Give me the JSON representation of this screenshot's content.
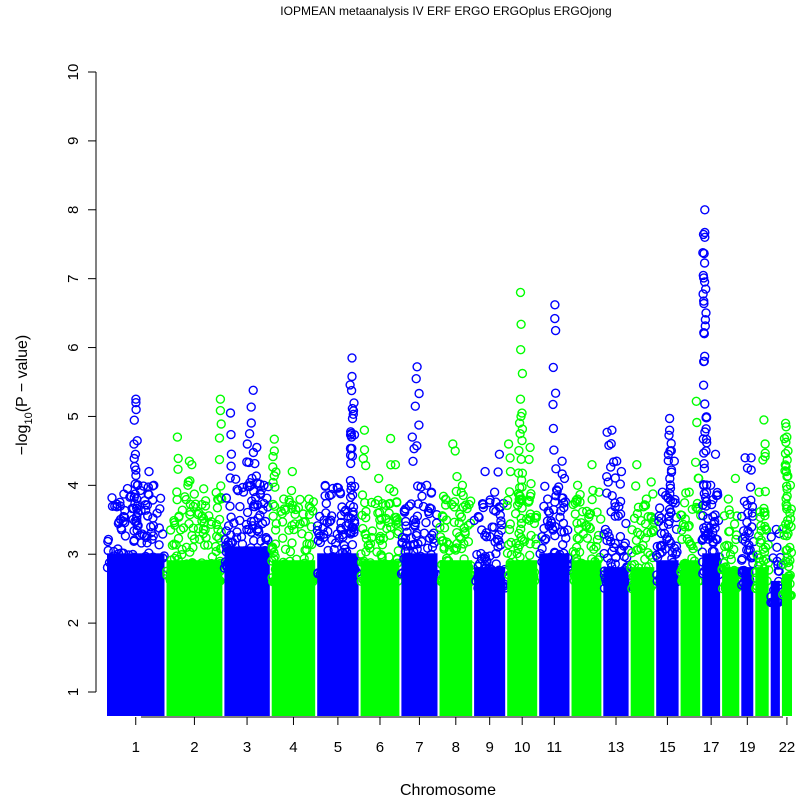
{
  "chart_data": {
    "type": "scatter",
    "title": "IOPMEAN metaanalysis IV ERF ERGO ERGOplus ERGOjong",
    "xlabel": "Chromosome",
    "ylabel_main": "−log",
    "ylabel_sub": "10",
    "ylabel_tail": "(P − value)",
    "ylim": [
      1,
      10
    ],
    "y_ticks": [
      "1",
      "2",
      "3",
      "4",
      "5",
      "6",
      "7",
      "8",
      "9",
      "10"
    ],
    "x_tick_labels": [
      "1",
      "2",
      "3",
      "4",
      "5",
      "6",
      "7",
      "8",
      "9",
      "10",
      "11",
      "13",
      "15",
      "17",
      "19",
      "22"
    ],
    "x_tick_chromosomes": [
      1,
      2,
      3,
      4,
      5,
      6,
      7,
      8,
      9,
      10,
      11,
      13,
      15,
      17,
      19,
      22
    ],
    "colors": {
      "odd": "#0000ff",
      "even": "#00ff00"
    },
    "chromosomes": [
      {
        "chr": 1,
        "start": 0.0,
        "end": 248.9,
        "color": "#0000ff",
        "base_max": 3.1,
        "peaks": [
          [
            125,
            5.25
          ],
          [
            125,
            5.2
          ],
          [
            126,
            5.1
          ],
          [
            123,
            4.45
          ],
          [
            180,
            4.2
          ],
          [
            60,
            3.7
          ],
          [
            200,
            4.0
          ]
        ]
      },
      {
        "chr": 2,
        "start": 248.9,
        "end": 491.1,
        "color": "#00ff00",
        "base_max": 3.0,
        "peaks": [
          [
            50,
            4.7
          ],
          [
            100,
            4.35
          ],
          [
            110,
            4.3
          ],
          [
            160,
            3.95
          ],
          [
            230,
            5.25
          ]
        ]
      },
      {
        "chr": 3,
        "start": 491.1,
        "end": 689.4,
        "color": "#0000ff",
        "base_max": 3.2,
        "peaks": [
          [
            30,
            5.05
          ],
          [
            110,
            4.75
          ],
          [
            100,
            4.6
          ],
          [
            125,
            5.38
          ],
          [
            140,
            4.55
          ],
          [
            170,
            4.0
          ]
        ]
      },
      {
        "chr": 4,
        "start": 689.4,
        "end": 879.6,
        "color": "#00ff00",
        "base_max": 3.0,
        "peaks": [
          [
            15,
            4.67
          ],
          [
            15,
            4.5
          ],
          [
            90,
            4.2
          ],
          [
            160,
            3.8
          ]
        ]
      },
      {
        "chr": 5,
        "start": 879.6,
        "end": 1061.1,
        "color": "#0000ff",
        "base_max": 3.1,
        "peaks": [
          [
            150,
            5.85
          ],
          [
            150,
            5.58
          ],
          [
            152,
            4.97
          ],
          [
            148,
            4.7
          ],
          [
            100,
            3.9
          ],
          [
            40,
            3.6
          ]
        ]
      },
      {
        "chr": 6,
        "start": 1061.1,
        "end": 1231.9,
        "color": "#00ff00",
        "base_max": 3.0,
        "peaks": [
          [
            20,
            4.8
          ],
          [
            80,
            4.1
          ],
          [
            130,
            4.68
          ],
          [
            150,
            4.3
          ]
        ]
      },
      {
        "chr": 7,
        "start": 1231.9,
        "end": 1391.2,
        "color": "#0000ff",
        "base_max": 3.1,
        "peaks": [
          [
            70,
            5.72
          ],
          [
            50,
            4.7
          ],
          [
            110,
            4.0
          ],
          [
            130,
            3.9
          ]
        ]
      },
      {
        "chr": 8,
        "start": 1391.2,
        "end": 1536.3,
        "color": "#00ff00",
        "base_max": 3.0,
        "peaks": [
          [
            60,
            4.6
          ],
          [
            70,
            4.5
          ],
          [
            100,
            4.0
          ],
          [
            30,
            3.8
          ]
        ]
      },
      {
        "chr": 9,
        "start": 1536.3,
        "end": 1674.7,
        "color": "#0000ff",
        "base_max": 2.9,
        "peaks": [
          [
            50,
            4.2
          ],
          [
            110,
            4.45
          ],
          [
            90,
            3.9
          ]
        ]
      },
      {
        "chr": 10,
        "start": 1674.7,
        "end": 1808.5,
        "color": "#00ff00",
        "base_max": 3.0,
        "peaks": [
          [
            10,
            4.6
          ],
          [
            60,
            6.8
          ],
          [
            60,
            5.25
          ],
          [
            62,
            5.0
          ],
          [
            58,
            4.75
          ],
          [
            100,
            4.55
          ]
        ]
      },
      {
        "chr": 11,
        "start": 1808.5,
        "end": 1943.6,
        "color": "#0000ff",
        "base_max": 3.1,
        "peaks": [
          [
            70,
            6.62
          ],
          [
            100,
            4.35
          ],
          [
            40,
            3.8
          ],
          [
            110,
            4.1
          ]
        ]
      },
      {
        "chr": 12,
        "start": 1943.6,
        "end": 2076.9,
        "color": "#00ff00",
        "base_max": 3.0,
        "peaks": [
          [
            30,
            4.0
          ],
          [
            90,
            4.3
          ],
          [
            120,
            3.9
          ]
        ]
      },
      {
        "chr": 13,
        "start": 2076.9,
        "end": 2191.3,
        "color": "#0000ff",
        "base_max": 2.9,
        "peaks": [
          [
            20,
            4.77
          ],
          [
            40,
            4.8
          ],
          [
            60,
            4.35
          ],
          [
            80,
            4.2
          ]
        ]
      },
      {
        "chr": 14,
        "start": 2191.3,
        "end": 2298.3,
        "color": "#00ff00",
        "base_max": 2.9,
        "peaks": [
          [
            30,
            4.3
          ],
          [
            70,
            3.8
          ],
          [
            90,
            4.05
          ]
        ]
      },
      {
        "chr": 15,
        "start": 2298.3,
        "end": 2400.3,
        "color": "#0000ff",
        "base_max": 3.0,
        "peaks": [
          [
            60,
            4.97
          ],
          [
            60,
            4.8
          ],
          [
            62,
            4.5
          ],
          [
            80,
            4.35
          ],
          [
            30,
            3.9
          ]
        ]
      },
      {
        "chr": 16,
        "start": 2400.3,
        "end": 2490.6,
        "color": "#00ff00",
        "base_max": 3.0,
        "peaks": [
          [
            70,
            5.22
          ],
          [
            40,
            3.9
          ],
          [
            80,
            4.1
          ]
        ]
      },
      {
        "chr": 17,
        "start": 2490.6,
        "end": 2573.9,
        "color": "#0000ff",
        "base_max": 3.1,
        "peaks": [
          [
            15,
            8.0
          ],
          [
            15,
            7.67
          ],
          [
            15,
            7.6
          ],
          [
            20,
            4.5
          ],
          [
            60,
            4.45
          ],
          [
            40,
            4.0
          ]
        ]
      },
      {
        "chr": 18,
        "start": 2573.9,
        "end": 2654.3,
        "color": "#00ff00",
        "base_max": 2.9,
        "peaks": [
          [
            30,
            3.8
          ],
          [
            60,
            4.1
          ]
        ]
      },
      {
        "chr": 19,
        "start": 2654.3,
        "end": 2712.9,
        "color": "#0000ff",
        "base_max": 2.9,
        "peaks": [
          [
            20,
            4.4
          ],
          [
            30,
            4.25
          ],
          [
            45,
            4.4
          ],
          [
            50,
            3.6
          ]
        ]
      },
      {
        "chr": 20,
        "start": 2712.9,
        "end": 2777.3,
        "color": "#00ff00",
        "base_max": 2.9,
        "peaks": [
          [
            40,
            4.95
          ],
          [
            45,
            4.6
          ],
          [
            20,
            3.9
          ]
        ]
      },
      {
        "chr": 21,
        "start": 2777.3,
        "end": 2824.0,
        "color": "#0000ff",
        "base_max": 2.7,
        "peaks": [
          [
            30,
            3.1
          ],
          [
            40,
            3.3
          ]
        ]
      },
      {
        "chr": 22,
        "start": 2824.0,
        "end": 2874.8,
        "color": "#00ff00",
        "base_max": 2.8,
        "peaks": [
          [
            20,
            4.9
          ],
          [
            22,
            4.85
          ],
          [
            30,
            4.5
          ],
          [
            25,
            4.7
          ],
          [
            40,
            4.0
          ]
        ]
      }
    ]
  }
}
